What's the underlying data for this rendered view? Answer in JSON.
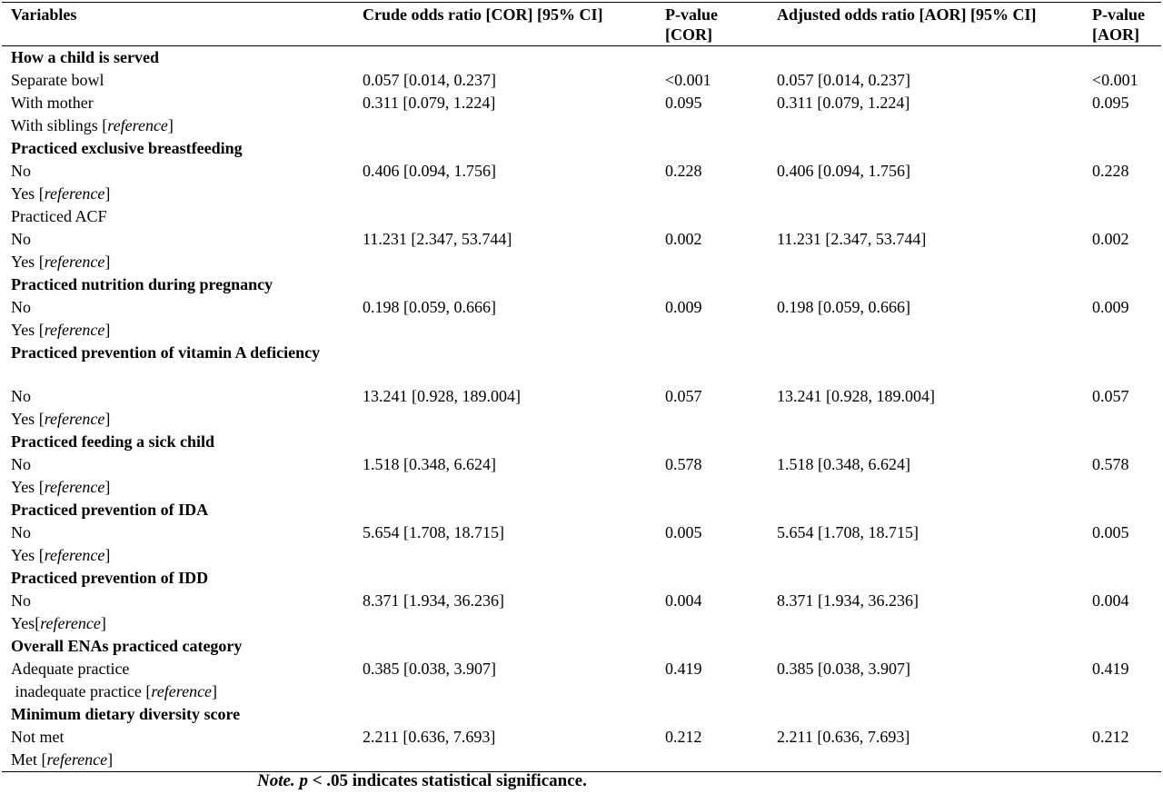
{
  "headers": {
    "variables": "Variables",
    "cor": "Crude odds ratio [COR] [95% CI]",
    "p_cor": "P-value [COR]",
    "aor": "Adjusted odds ratio [AOR] [95% CI]",
    "p_aor": "P-value [AOR]"
  },
  "rows": [
    {
      "label": "How a child is served",
      "ref": "",
      "cor": "",
      "p_cor": "",
      "aor": "",
      "p_aor": ""
    },
    {
      "label": "Separate bowl",
      "ref": "",
      "cor": "0.057 [0.014, 0.237]",
      "p_cor": "<0.001",
      "aor": "0.057 [0.014, 0.237]",
      "p_aor": "<0.001"
    },
    {
      "label": "With mother",
      "ref": "",
      "cor": "0.311 [0.079, 1.224]",
      "p_cor": "0.095",
      "aor": "0.311 [0.079, 1.224]",
      "p_aor": "0.095"
    },
    {
      "label": "With siblings ",
      "ref": "reference",
      "cor": "",
      "p_cor": "",
      "aor": "",
      "p_aor": ""
    },
    {
      "label": "Practiced exclusive breastfeeding",
      "ref": "",
      "cor": "",
      "p_cor": "",
      "aor": "",
      "p_aor": ""
    },
    {
      "label": "No",
      "ref": "",
      "cor": "0.406 [0.094, 1.756]",
      "p_cor": "0.228",
      "aor": "0.406 [0.094, 1.756]",
      "p_aor": "0.228"
    },
    {
      "label": "Yes ",
      "ref": "reference",
      "cor": "",
      "p_cor": "",
      "aor": "",
      "p_aor": ""
    },
    {
      "label": "Practiced ACF",
      "ref": "",
      "cor": "",
      "p_cor": "",
      "aor": "",
      "p_aor": ""
    },
    {
      "label": "No",
      "ref": "",
      "cor": "11.231 [2.347, 53.744]",
      "p_cor": "0.002",
      "aor": "11.231 [2.347, 53.744]",
      "p_aor": "0.002"
    },
    {
      "label": "Yes ",
      "ref": "reference",
      "cor": "",
      "p_cor": "",
      "aor": "",
      "p_aor": ""
    },
    {
      "label": "Practiced nutrition during pregnancy",
      "ref": "",
      "cor": "",
      "p_cor": "",
      "aor": "",
      "p_aor": ""
    },
    {
      "label": "No",
      "ref": "",
      "cor": "0.198 [0.059, 0.666]",
      "p_cor": "0.009",
      "aor": "0.198 [0.059, 0.666]",
      "p_aor": "0.009"
    },
    {
      "label": "Yes ",
      "ref": "reference",
      "cor": "",
      "p_cor": "",
      "aor": "",
      "p_aor": ""
    },
    {
      "label": "Practiced prevention of vitamin A deficiency",
      "ref": "",
      "cor": "",
      "p_cor": "",
      "aor": "",
      "p_aor": ""
    },
    {
      "label": "No",
      "ref": "",
      "cor": "13.241 [0.928, 189.004]",
      "p_cor": "0.057",
      "aor": "13.241 [0.928, 189.004]",
      "p_aor": "0.057"
    },
    {
      "label": "Yes ",
      "ref": "reference",
      "cor": "",
      "p_cor": "",
      "aor": "",
      "p_aor": ""
    },
    {
      "label": "Practiced feeding a sick child",
      "ref": "",
      "cor": "",
      "p_cor": "",
      "aor": "",
      "p_aor": ""
    },
    {
      "label": "No",
      "ref": "",
      "cor": "1.518 [0.348, 6.624]",
      "p_cor": "0.578",
      "aor": "1.518 [0.348, 6.624]",
      "p_aor": "0.578"
    },
    {
      "label": "Yes ",
      "ref": "reference",
      "cor": "",
      "p_cor": "",
      "aor": "",
      "p_aor": ""
    },
    {
      "label": "Practiced prevention of IDA",
      "ref": "",
      "cor": "",
      "p_cor": "",
      "aor": "",
      "p_aor": ""
    },
    {
      "label": "No",
      "ref": "",
      "cor": "5.654 [1.708, 18.715]",
      "p_cor": "0.005",
      "aor": "5.654 [1.708, 18.715]",
      "p_aor": "0.005"
    },
    {
      "label": "Yes ",
      "ref": "reference",
      "cor": "",
      "p_cor": "",
      "aor": "",
      "p_aor": ""
    },
    {
      "label": "Practiced prevention of IDD",
      "ref": "",
      "cor": "",
      "p_cor": "",
      "aor": "",
      "p_aor": ""
    },
    {
      "label": "No",
      "ref": "",
      "cor": "8.371 [1.934, 36.236]",
      "p_cor": "0.004",
      "aor": "8.371 [1.934, 36.236]",
      "p_aor": "0.004"
    },
    {
      "label": "Yes",
      "ref": "reference",
      "cor": "",
      "p_cor": "",
      "aor": "",
      "p_aor": ""
    },
    {
      "label": "Overall ENAs practiced category",
      "ref": "",
      "cor": "",
      "p_cor": "",
      "aor": "",
      "p_aor": ""
    },
    {
      "label": "Adequate practice",
      "ref": "",
      "cor": "0.385 [0.038, 3.907]",
      "p_cor": "0.419",
      "aor": "0.385 [0.038, 3.907]",
      "p_aor": "0.419"
    },
    {
      "label": " inadequate practice ",
      "ref": "reference",
      "cor": "",
      "p_cor": "",
      "aor": "",
      "p_aor": ""
    },
    {
      "label": "Minimum dietary diversity score",
      "ref": "",
      "cor": "",
      "p_cor": "",
      "aor": "",
      "p_aor": ""
    },
    {
      "label": "Not met",
      "ref": "",
      "cor": "2.211 [0.636, 7.693]",
      "p_cor": "0.212",
      "aor": "2.211 [0.636, 7.693]",
      "p_aor": "0.212"
    },
    {
      "label": "Met ",
      "ref": "reference",
      "cor": "",
      "p_cor": "",
      "aor": "",
      "p_aor": ""
    }
  ],
  "note": {
    "prefix": "Note.",
    "symbol": "p",
    "text": " < .05 indicates statistical significance."
  }
}
